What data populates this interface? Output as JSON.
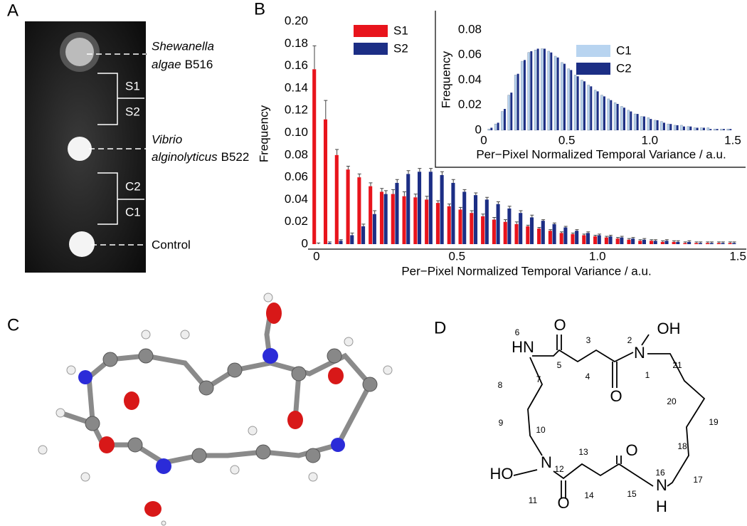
{
  "panel_labels": [
    "A",
    "B",
    "C",
    "D"
  ],
  "panel_a": {
    "strains": [
      {
        "genus": "Shewanella",
        "species": "algae",
        "strain": "B516"
      },
      {
        "genus": "Vibrio",
        "species": "alginolyticus",
        "strain": "B522"
      }
    ],
    "control": "Control",
    "regions": [
      "S1",
      "S2",
      "C2",
      "C1"
    ]
  },
  "chart_data": [
    {
      "type": "bar",
      "xlabel": "Per−Pixel Normalized Temporal Variance / a.u.",
      "ylabel": "Frequency",
      "x": [
        0,
        0.04,
        0.08,
        0.12,
        0.16,
        0.2,
        0.24,
        0.28,
        0.32,
        0.36,
        0.4,
        0.44,
        0.48,
        0.52,
        0.56,
        0.6,
        0.64,
        0.68,
        0.72,
        0.76,
        0.8,
        0.84,
        0.88,
        0.92,
        0.96,
        1,
        1.04,
        1.08,
        1.12,
        1.16,
        1.2,
        1.24,
        1.28,
        1.32,
        1.36,
        1.4,
        1.44,
        1.48
      ],
      "series": [
        {
          "name": "S1",
          "color": "#e8141c",
          "values": [
            0.157,
            0.112,
            0.08,
            0.067,
            0.06,
            0.052,
            0.047,
            0.045,
            0.043,
            0.042,
            0.04,
            0.037,
            0.034,
            0.031,
            0.028,
            0.025,
            0.022,
            0.02,
            0.018,
            0.016,
            0.014,
            0.012,
            0.01,
            0.009,
            0.008,
            0.007,
            0.006,
            0.005,
            0.004,
            0.003,
            0.003,
            0.002,
            0.002,
            0.001,
            0.001,
            0.001,
            0.001,
            0.001
          ],
          "errors": [
            0.021,
            0.017,
            0.005,
            0.003,
            0.003,
            0.003,
            0.003,
            0.004,
            0.004,
            0.003,
            0.003,
            0.002,
            0.002,
            0.002,
            0.002,
            0.002,
            0.002,
            0.002,
            0.002,
            0.001,
            0.001,
            0.001,
            0.001,
            0.001,
            0.001,
            0.001,
            0.001,
            0.001,
            0.001,
            0.001,
            0.001,
            0.001,
            0.001,
            0.001,
            0.001,
            0.001,
            0.001,
            0.001
          ]
        },
        {
          "name": "S2",
          "color": "#1c2e85",
          "values": [
            0,
            0.001,
            0.003,
            0.008,
            0.016,
            0.027,
            0.045,
            0.055,
            0.063,
            0.065,
            0.065,
            0.062,
            0.055,
            0.047,
            0.044,
            0.04,
            0.036,
            0.032,
            0.028,
            0.024,
            0.021,
            0.018,
            0.015,
            0.012,
            0.01,
            0.008,
            0.007,
            0.006,
            0.005,
            0.004,
            0.003,
            0.003,
            0.002,
            0.002,
            0.001,
            0.001,
            0.001,
            0.001
          ],
          "errors": [
            0.001,
            0.001,
            0.001,
            0.002,
            0.002,
            0.003,
            0.003,
            0.003,
            0.003,
            0.003,
            0.003,
            0.003,
            0.003,
            0.002,
            0.002,
            0.002,
            0.002,
            0.002,
            0.002,
            0.002,
            0.001,
            0.001,
            0.001,
            0.001,
            0.001,
            0.001,
            0.001,
            0.001,
            0.001,
            0.001,
            0.001,
            0.001,
            0.001,
            0.001,
            0.001,
            0.001,
            0.001,
            0.001
          ]
        }
      ],
      "xlim": [
        -0.03,
        1.53
      ],
      "xticks": [
        0,
        0.5,
        {
          "value": 1,
          "label": "1.0"
        },
        1.5
      ],
      "ylim": [
        0,
        0.2
      ],
      "yticks": [
        0,
        0.02,
        0.04,
        0.06,
        0.08,
        {
          "value": 0.1,
          "label": "0.10"
        },
        0.12,
        0.14,
        0.16,
        0.18,
        {
          "value": 0.2,
          "label": "0.20"
        }
      ],
      "legend": "upper left"
    },
    {
      "type": "bar",
      "xlabel": "Per−Pixel Normalized Temporal Variance / a.u.",
      "ylabel": "Frequency",
      "x": [
        0,
        0.04,
        0.08,
        0.12,
        0.16,
        0.2,
        0.24,
        0.28,
        0.32,
        0.36,
        0.4,
        0.44,
        0.48,
        0.52,
        0.56,
        0.6,
        0.64,
        0.68,
        0.72,
        0.76,
        0.8,
        0.84,
        0.88,
        0.92,
        0.96,
        1,
        1.04,
        1.08,
        1.12,
        1.16,
        1.2,
        1.24,
        1.28,
        1.32,
        1.36,
        1.4,
        1.44,
        1.48
      ],
      "series": [
        {
          "name": "C1",
          "color": "#b8d4f0",
          "values": [
            0,
            0.001,
            0.005,
            0.015,
            0.028,
            0.044,
            0.055,
            0.062,
            0.064,
            0.065,
            0.063,
            0.059,
            0.054,
            0.049,
            0.044,
            0.04,
            0.036,
            0.032,
            0.028,
            0.025,
            0.022,
            0.019,
            0.016,
            0.013,
            0.011,
            0.01,
            0.008,
            0.007,
            0.005,
            0.004,
            0.004,
            0.003,
            0.002,
            0.002,
            0.002,
            0.001,
            0.001,
            0.001
          ]
        },
        {
          "name": "C2",
          "color": "#1c2e85",
          "values": [
            0,
            0.002,
            0.006,
            0.017,
            0.03,
            0.045,
            0.056,
            0.063,
            0.065,
            0.065,
            0.062,
            0.058,
            0.053,
            0.048,
            0.043,
            0.039,
            0.035,
            0.031,
            0.027,
            0.024,
            0.021,
            0.018,
            0.015,
            0.013,
            0.011,
            0.009,
            0.008,
            0.006,
            0.005,
            0.004,
            0.003,
            0.003,
            0.002,
            0.002,
            0.001,
            0.001,
            0.001,
            0.001
          ]
        }
      ],
      "xlim": [
        -0.03,
        1.53
      ],
      "xticks": [
        0,
        0.5,
        {
          "value": 1,
          "label": "1.0"
        },
        1.5
      ],
      "ylim": [
        0,
        0.08
      ],
      "yticks": [
        0,
        0.02,
        0.04,
        0.06,
        0.08
      ],
      "legend": "upper right"
    }
  ],
  "panel_d": {
    "atoms": [
      "O",
      "OH",
      "HN",
      "N",
      "O",
      "O",
      "N",
      "HO",
      "N",
      "H",
      "O"
    ],
    "numbers": [
      "1",
      "2",
      "3",
      "4",
      "5",
      "6",
      "7",
      "8",
      "9",
      "10",
      "11",
      "12",
      "13",
      "14",
      "15",
      "16",
      "17",
      "18",
      "19",
      "20",
      "21"
    ]
  }
}
